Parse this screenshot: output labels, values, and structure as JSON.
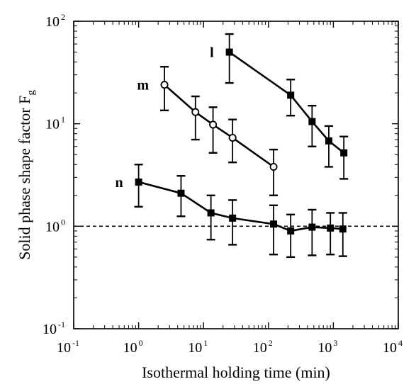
{
  "chart_data": {
    "type": "scatter",
    "xlabel": "Isothermal holding time (min)",
    "ylabel": "Solid phase shape factor F",
    "ylabel_subscript": "g",
    "x_scale": "log",
    "y_scale": "log",
    "xlim": [
      0.1,
      10000
    ],
    "ylim": [
      0.1,
      100
    ],
    "x_ticks": [
      {
        "value": 0.1,
        "base": "10",
        "exp": "-1"
      },
      {
        "value": 1,
        "base": "10",
        "exp": "0"
      },
      {
        "value": 10,
        "base": "10",
        "exp": "1"
      },
      {
        "value": 100,
        "base": "10",
        "exp": "2"
      },
      {
        "value": 1000,
        "base": "10",
        "exp": "3"
      },
      {
        "value": 10000,
        "base": "10",
        "exp": "4"
      }
    ],
    "y_ticks": [
      {
        "value": 0.1,
        "base": "10",
        "exp": "-1"
      },
      {
        "value": 1,
        "base": "10",
        "exp": "0"
      },
      {
        "value": 10,
        "base": "10",
        "exp": "1"
      },
      {
        "value": 100,
        "base": "10",
        "exp": "2"
      }
    ],
    "reference_line": {
      "y": 1,
      "style": "dashed"
    },
    "grid": false,
    "series": [
      {
        "name": "l",
        "marker": "filled-square",
        "x": [
          25,
          220,
          470,
          850,
          1450
        ],
        "y": [
          50,
          19,
          10.5,
          6.8,
          5.2
        ],
        "y_low": [
          25,
          12,
          6,
          3.8,
          2.9
        ],
        "y_high": [
          75,
          27,
          15,
          9.5,
          7.5
        ]
      },
      {
        "name": "m",
        "marker": "open-circle",
        "x": [
          2.5,
          7.5,
          14,
          28,
          120
        ],
        "y": [
          24,
          13,
          9.8,
          7.3,
          3.8
        ],
        "y_low": [
          13.5,
          7,
          5.2,
          4.2,
          2
        ],
        "y_high": [
          36,
          18.5,
          14.5,
          11,
          5.6
        ]
      },
      {
        "name": "n",
        "marker": "filled-square",
        "x": [
          1,
          4.5,
          13,
          28,
          120,
          220,
          470,
          900,
          1400
        ],
        "y": [
          2.7,
          2.1,
          1.35,
          1.2,
          1.05,
          0.9,
          0.98,
          0.96,
          0.94
        ],
        "y_low": [
          1.55,
          1.25,
          0.74,
          0.66,
          0.53,
          0.5,
          0.52,
          0.53,
          0.51
        ],
        "y_high": [
          4,
          3.1,
          2,
          1.8,
          1.6,
          1.3,
          1.45,
          1.35,
          1.35
        ]
      }
    ]
  }
}
